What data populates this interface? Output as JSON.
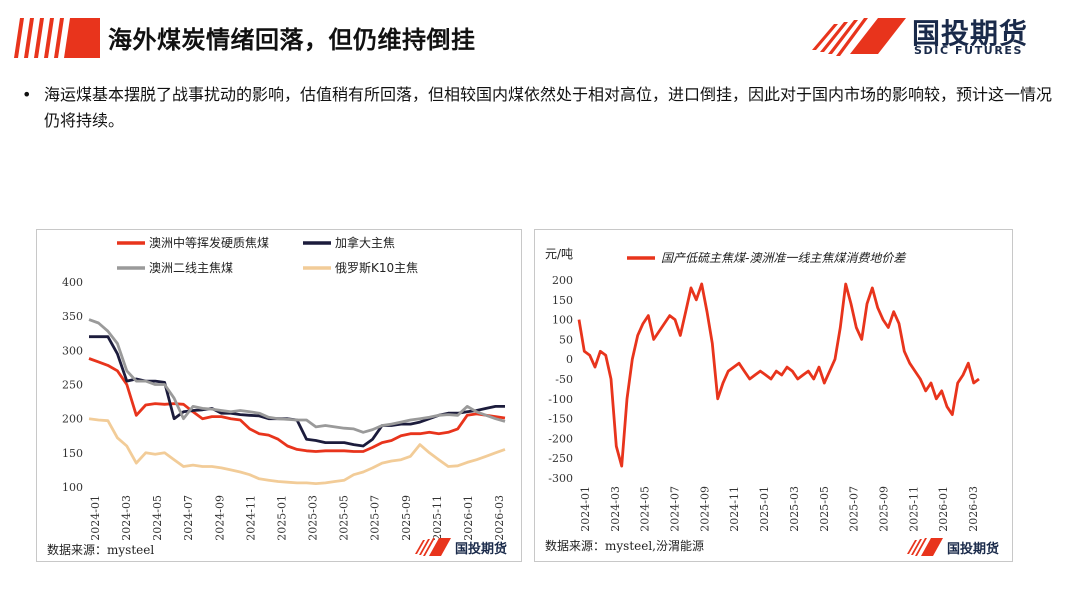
{
  "header": {
    "title": "海外煤炭情绪回落，但仍维持倒挂",
    "logo_cn": "国投期货",
    "logo_en": "SDIC FUTURES",
    "brand_red": "#e8341c",
    "brand_navy": "#1a2a4a"
  },
  "bullet": {
    "marker": "•",
    "text": "海运煤基本摆脱了战事扰动的影响，估值稍有所回落，但相较国内煤依然处于相对高位，进口倒挂，因此对于国内市场的影响较，预计这一情况仍将持续。"
  },
  "chart_data": [
    {
      "type": "line",
      "title": "",
      "ylim": [
        100,
        400
      ],
      "yticks": [
        "100",
        "150",
        "200",
        "250",
        "300",
        "350",
        "400"
      ],
      "xticks": [
        "2024-01",
        "2024-03",
        "2024-05",
        "2024-07",
        "2024-09",
        "2024-11",
        "2025-01",
        "2025-03",
        "2025-05",
        "2025-07",
        "2025-09",
        "2025-11",
        "2026-01",
        "2026-03"
      ],
      "legend_position": "top",
      "source": "数据来源：mysteel",
      "series": [
        {
          "name": "澳洲中等挥发硬质焦煤",
          "color": "#e8341c",
          "values": [
            288,
            283,
            278,
            270,
            250,
            205,
            220,
            222,
            221,
            222,
            221,
            210,
            200,
            203,
            203,
            200,
            198,
            185,
            178,
            176,
            170,
            160,
            155,
            153,
            152,
            153,
            153,
            153,
            152,
            152,
            158,
            165,
            168,
            175,
            178,
            178,
            180,
            178,
            180,
            185,
            205,
            207,
            205,
            203,
            201
          ]
        },
        {
          "name": "加拿大主焦",
          "color": "#1c1c3c",
          "values": [
            320,
            320,
            320,
            295,
            255,
            258,
            255,
            255,
            253,
            200,
            210,
            212,
            213,
            215,
            208,
            208,
            206,
            205,
            204,
            200,
            200,
            200,
            198,
            170,
            168,
            165,
            165,
            165,
            162,
            160,
            170,
            190,
            190,
            192,
            192,
            195,
            200,
            205,
            208,
            208,
            210,
            212,
            215,
            218,
            218
          ]
        },
        {
          "name": "澳洲二线主焦煤",
          "color": "#9a9a9a",
          "values": [
            345,
            340,
            328,
            310,
            270,
            255,
            255,
            250,
            250,
            230,
            200,
            218,
            215,
            214,
            212,
            210,
            212,
            210,
            208,
            202,
            200,
            199,
            198,
            198,
            188,
            190,
            188,
            186,
            185,
            180,
            184,
            190,
            192,
            195,
            198,
            200,
            202,
            205,
            206,
            205,
            218,
            210,
            205,
            200,
            196
          ]
        },
        {
          "name": "俄罗斯K10主焦",
          "color": "#f2cc98",
          "values": [
            200,
            198,
            197,
            172,
            160,
            135,
            150,
            148,
            150,
            140,
            130,
            132,
            130,
            130,
            128,
            125,
            122,
            118,
            112,
            110,
            108,
            107,
            106,
            106,
            105,
            106,
            108,
            110,
            118,
            122,
            128,
            135,
            138,
            140,
            145,
            162,
            150,
            140,
            130,
            131,
            136,
            140,
            145,
            150,
            155
          ]
        }
      ]
    },
    {
      "type": "line",
      "title": "国产低硫主焦煤-澳洲准一线主焦煤消费地价差",
      "ylabel": "元/吨",
      "ylim": [
        -300,
        200
      ],
      "yticks": [
        "-300",
        "-250",
        "-200",
        "-150",
        "-100",
        "-50",
        "0",
        "50",
        "100",
        "150",
        "200"
      ],
      "xticks": [
        "2024-01",
        "2024-03",
        "2024-05",
        "2024-07",
        "2024-09",
        "2024-11",
        "2025-01",
        "2025-03",
        "2025-05",
        "2025-07",
        "2025-09",
        "2025-11",
        "2026-01",
        "2026-03"
      ],
      "source": "数据来源：mysteel,汾渭能源",
      "series": [
        {
          "name": "国产低硫主焦煤-澳洲准一线主焦煤消费地价差",
          "color": "#e8341c",
          "values": [
            100,
            20,
            10,
            -20,
            20,
            10,
            -50,
            -220,
            -270,
            -100,
            0,
            60,
            90,
            110,
            50,
            70,
            90,
            110,
            100,
            60,
            120,
            180,
            150,
            190,
            120,
            40,
            -100,
            -60,
            -30,
            -20,
            -10,
            -30,
            -50,
            -40,
            -30,
            -40,
            -50,
            -30,
            -40,
            -20,
            -30,
            -50,
            -40,
            -30,
            -50,
            -20,
            -60,
            -30,
            0,
            80,
            190,
            140,
            80,
            50,
            140,
            180,
            130,
            100,
            80,
            120,
            90,
            20,
            -10,
            -30,
            -50,
            -80,
            -60,
            -100,
            -80,
            -120,
            -140,
            -60,
            -40,
            -10,
            -60,
            -50
          ]
        }
      ]
    }
  ]
}
